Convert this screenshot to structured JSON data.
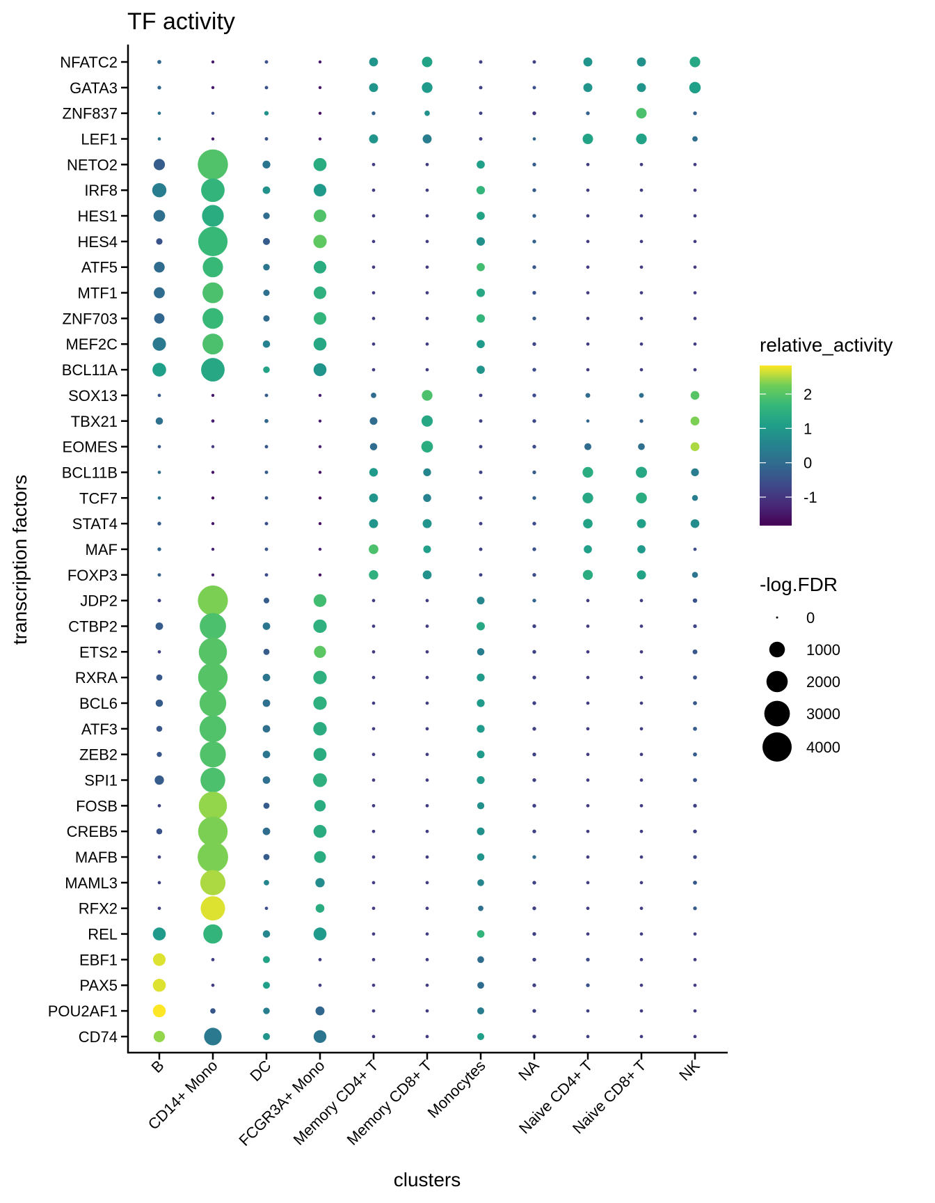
{
  "chart_data": {
    "type": "scatter",
    "subtype": "dot-plot",
    "title": "TF activity",
    "xlabel": "clusters",
    "ylabel": "transcription factors",
    "grid": false,
    "legend_position": "right",
    "x": [
      "B",
      "CD14+ Mono",
      "DC",
      "FCGR3A+ Mono",
      "Memory CD4+ T",
      "Memory CD8+ T",
      "Monocytes",
      "NA",
      "Naive CD4+ T",
      "Naive CD8+ T",
      "NK"
    ],
    "y": [
      "NFATC2",
      "GATA3",
      "ZNF837",
      "LEF1",
      "NETO2",
      "IRF8",
      "HES1",
      "HES4",
      "ATF5",
      "MTF1",
      "ZNF703",
      "MEF2C",
      "BCL11A",
      "SOX13",
      "TBX21",
      "EOMES",
      "BCL11B",
      "TCF7",
      "STAT4",
      "MAF",
      "FOXP3",
      "JDP2",
      "CTBP2",
      "ETS2",
      "RXRA",
      "BCL6",
      "ATF3",
      "ZEB2",
      "SPI1",
      "FOSB",
      "CREB5",
      "MAFB",
      "MAML3",
      "RFX2",
      "REL",
      "EBF1",
      "PAX5",
      "POU2AF1",
      "CD74"
    ],
    "color_legend": {
      "title": "relative_activity",
      "ticks": [
        2,
        1,
        0,
        -1
      ],
      "range": [
        -1.83,
        2.83
      ],
      "palette": "viridis"
    },
    "size_legend": {
      "title": "-log.FDR",
      "breaks": [
        0,
        1000,
        2000,
        3000,
        4000
      ]
    },
    "series": [
      {
        "name": "relative_activity",
        "rows": [
          [
            -0.1,
            -1.5,
            -0.5,
            -1.5,
            0.9,
            1.2,
            -0.8,
            -0.8,
            0.9,
            0.8,
            1.3
          ],
          [
            -0.1,
            -1.5,
            -0.5,
            -1.5,
            0.9,
            1.0,
            -0.8,
            -0.5,
            0.9,
            0.9,
            1.1
          ],
          [
            0.2,
            -0.6,
            0.8,
            -1.6,
            -0.2,
            0.8,
            -0.8,
            -1.0,
            -0.2,
            1.9,
            -0.2
          ],
          [
            0.2,
            -1.5,
            -0.5,
            -1.5,
            0.9,
            0.4,
            -0.8,
            -0.1,
            1.2,
            1.2,
            0.1
          ],
          [
            -0.3,
            1.95,
            0.2,
            1.4,
            -0.9,
            -0.9,
            1.1,
            -0.3,
            -0.9,
            -0.9,
            -0.9
          ],
          [
            0.4,
            1.6,
            0.8,
            1.0,
            -0.9,
            -0.9,
            1.6,
            -0.3,
            -0.9,
            -0.9,
            -0.9
          ],
          [
            0.1,
            1.4,
            0.0,
            1.95,
            -0.9,
            -0.9,
            1.2,
            -0.2,
            -0.9,
            -0.9,
            -0.9
          ],
          [
            -0.5,
            1.7,
            -0.3,
            2.1,
            -0.9,
            -0.9,
            0.8,
            -0.2,
            -0.9,
            -0.9,
            -0.9
          ],
          [
            0.0,
            1.7,
            0.2,
            1.4,
            -0.9,
            -0.9,
            1.8,
            -0.4,
            -0.9,
            -0.9,
            -0.9
          ],
          [
            0.0,
            1.9,
            0.1,
            1.5,
            -0.9,
            -0.9,
            1.3,
            -0.5,
            -0.9,
            -0.9,
            -0.9
          ],
          [
            -0.1,
            1.7,
            0.0,
            1.6,
            -0.9,
            -0.9,
            1.6,
            -0.3,
            -0.9,
            -0.9,
            -0.9
          ],
          [
            0.3,
            1.9,
            0.5,
            1.3,
            -0.9,
            -0.9,
            1.0,
            -0.7,
            -0.9,
            -0.9,
            -0.9
          ],
          [
            1.1,
            1.3,
            1.2,
            0.9,
            -0.9,
            -0.9,
            0.9,
            -0.6,
            -0.9,
            -0.9,
            -0.9
          ],
          [
            -0.4,
            -1.5,
            -0.3,
            -1.4,
            0.0,
            1.9,
            -0.8,
            -0.6,
            0.0,
            0.1,
            2.0
          ],
          [
            0.1,
            -1.4,
            -0.1,
            -1.4,
            0.0,
            1.3,
            -0.8,
            -0.7,
            -0.1,
            -0.2,
            2.3
          ],
          [
            -0.4,
            -1.0,
            -0.4,
            -1.4,
            0.0,
            1.4,
            -0.8,
            -0.6,
            0.0,
            0.1,
            2.5
          ],
          [
            0.1,
            -1.6,
            -0.3,
            -1.6,
            1.0,
            0.6,
            -0.8,
            -0.3,
            1.4,
            1.3,
            0.4
          ],
          [
            0.2,
            -1.7,
            -0.3,
            -1.8,
            0.9,
            0.5,
            -0.8,
            -0.2,
            1.3,
            1.4,
            0.4
          ],
          [
            -0.3,
            -1.5,
            -0.6,
            -1.6,
            0.9,
            0.9,
            -0.8,
            -0.6,
            1.2,
            1.1,
            0.7
          ],
          [
            -0.1,
            -1.3,
            -0.4,
            -1.3,
            1.9,
            1.1,
            -0.8,
            -0.5,
            1.1,
            1.0,
            -0.6
          ],
          [
            -0.2,
            -1.4,
            -0.6,
            -1.6,
            1.5,
            0.8,
            -0.8,
            -0.6,
            1.4,
            1.2,
            0.2
          ],
          [
            -0.8,
            2.3,
            -0.3,
            1.8,
            -0.9,
            -0.9,
            0.6,
            -0.1,
            -0.9,
            -0.9,
            -0.5
          ],
          [
            -0.3,
            1.9,
            0.2,
            1.5,
            -0.9,
            -0.9,
            1.3,
            -0.8,
            -0.9,
            -0.9,
            -0.7
          ],
          [
            -0.8,
            2.0,
            -0.3,
            2.05,
            -0.9,
            -0.9,
            0.4,
            -0.8,
            -0.9,
            -0.9,
            -0.4
          ],
          [
            -0.4,
            2.0,
            0.2,
            1.5,
            -0.9,
            -0.9,
            1.0,
            -0.8,
            -0.9,
            -0.9,
            -0.5
          ],
          [
            -0.3,
            2.0,
            0.1,
            1.5,
            -0.9,
            -0.9,
            1.0,
            -0.8,
            -0.9,
            -0.9,
            -0.4
          ],
          [
            -0.4,
            1.95,
            0.1,
            1.4,
            -0.9,
            -0.9,
            1.0,
            -0.8,
            -0.9,
            -0.9,
            -0.3
          ],
          [
            -0.4,
            1.95,
            0.2,
            1.4,
            -0.9,
            -0.9,
            1.0,
            -0.8,
            -0.9,
            -0.9,
            -0.3
          ],
          [
            -0.3,
            1.9,
            0.1,
            1.5,
            -0.9,
            -0.9,
            1.0,
            -0.8,
            -0.9,
            -0.9,
            -0.5
          ],
          [
            -0.8,
            2.4,
            -0.3,
            1.4,
            -0.9,
            -0.9,
            0.8,
            -0.8,
            -0.9,
            -0.9,
            -0.8
          ],
          [
            -0.5,
            2.3,
            0.0,
            1.4,
            -0.9,
            -0.9,
            0.8,
            -0.8,
            -0.9,
            -0.9,
            -0.8
          ],
          [
            -0.8,
            2.3,
            -0.3,
            1.4,
            -0.9,
            -0.9,
            0.9,
            0.1,
            -0.9,
            -0.9,
            -0.7
          ],
          [
            -0.8,
            2.5,
            0.6,
            0.7,
            -0.9,
            -0.9,
            0.6,
            -0.8,
            -0.9,
            -0.9,
            -0.4
          ],
          [
            -0.8,
            2.7,
            -0.6,
            1.4,
            -0.9,
            -0.9,
            0.1,
            -0.8,
            -0.9,
            -0.9,
            -0.3
          ],
          [
            1.0,
            1.6,
            0.6,
            1.0,
            -0.9,
            -0.9,
            1.6,
            -0.8,
            -0.9,
            -0.9,
            -0.8
          ],
          [
            2.7,
            -0.9,
            1.2,
            -0.9,
            -0.9,
            -0.9,
            0.0,
            -0.8,
            -0.6,
            -0.9,
            -0.9
          ],
          [
            2.7,
            -0.9,
            1.1,
            -0.9,
            -0.9,
            -0.9,
            0.0,
            -0.8,
            -0.5,
            -0.9,
            -0.9
          ],
          [
            2.85,
            -0.4,
            0.4,
            -0.1,
            -0.9,
            -0.9,
            0.4,
            -0.8,
            -0.8,
            -0.9,
            -0.9
          ],
          [
            2.4,
            0.3,
            0.9,
            0.2,
            -0.9,
            -0.9,
            1.1,
            -0.8,
            -0.8,
            -0.9,
            -0.9
          ]
        ]
      },
      {
        "name": "-log.FDR",
        "rows": [
          [
            20,
            5,
            10,
            5,
            250,
            380,
            10,
            10,
            260,
            260,
            390
          ],
          [
            15,
            5,
            10,
            5,
            260,
            400,
            10,
            10,
            260,
            260,
            480
          ],
          [
            8,
            5,
            30,
            5,
            15,
            60,
            10,
            15,
            15,
            380,
            15
          ],
          [
            8,
            5,
            10,
            5,
            260,
            260,
            10,
            8,
            380,
            400,
            60
          ],
          [
            460,
            4300,
            180,
            660,
            8,
            8,
            200,
            15,
            8,
            8,
            8
          ],
          [
            800,
            2500,
            160,
            600,
            8,
            8,
            220,
            15,
            8,
            8,
            8
          ],
          [
            500,
            2100,
            110,
            600,
            8,
            8,
            200,
            15,
            8,
            8,
            8
          ],
          [
            100,
            4050,
            130,
            690,
            8,
            8,
            220,
            15,
            8,
            8,
            8
          ],
          [
            410,
            1800,
            110,
            600,
            8,
            8,
            200,
            15,
            8,
            8,
            8
          ],
          [
            430,
            1900,
            100,
            600,
            8,
            8,
            220,
            15,
            8,
            8,
            8
          ],
          [
            370,
            1900,
            100,
            600,
            8,
            8,
            220,
            15,
            8,
            8,
            8
          ],
          [
            690,
            1900,
            150,
            640,
            8,
            8,
            200,
            15,
            8,
            8,
            8
          ],
          [
            730,
            2500,
            110,
            640,
            8,
            8,
            200,
            15,
            8,
            8,
            8
          ],
          [
            8,
            5,
            10,
            5,
            60,
            400,
            10,
            15,
            40,
            40,
            240
          ],
          [
            150,
            8,
            20,
            5,
            170,
            460,
            10,
            15,
            8,
            15,
            250
          ],
          [
            8,
            5,
            10,
            5,
            150,
            500,
            10,
            15,
            130,
            120,
            250
          ],
          [
            8,
            5,
            10,
            5,
            230,
            180,
            10,
            15,
            400,
            440,
            180
          ],
          [
            8,
            5,
            10,
            5,
            250,
            190,
            10,
            15,
            400,
            420,
            80
          ],
          [
            15,
            5,
            10,
            5,
            260,
            260,
            10,
            15,
            300,
            260,
            240
          ],
          [
            15,
            5,
            10,
            5,
            310,
            170,
            10,
            15,
            200,
            200,
            8
          ],
          [
            10,
            5,
            10,
            5,
            290,
            250,
            10,
            15,
            340,
            270,
            80
          ],
          [
            10,
            4250,
            70,
            620,
            8,
            8,
            170,
            15,
            8,
            8,
            30
          ],
          [
            160,
            3200,
            160,
            700,
            8,
            8,
            210,
            15,
            8,
            8,
            15
          ],
          [
            8,
            3700,
            90,
            540,
            8,
            8,
            150,
            15,
            8,
            8,
            40
          ],
          [
            90,
            4100,
            160,
            700,
            8,
            8,
            180,
            15,
            8,
            8,
            20
          ],
          [
            150,
            3300,
            160,
            700,
            8,
            8,
            180,
            15,
            8,
            8,
            20
          ],
          [
            80,
            3300,
            160,
            700,
            8,
            8,
            180,
            15,
            8,
            8,
            20
          ],
          [
            50,
            3100,
            160,
            650,
            8,
            8,
            170,
            15,
            8,
            8,
            20
          ],
          [
            280,
            2800,
            160,
            750,
            8,
            8,
            180,
            15,
            8,
            8,
            20
          ],
          [
            8,
            3700,
            90,
            480,
            8,
            8,
            140,
            15,
            8,
            8,
            15
          ],
          [
            80,
            4100,
            160,
            640,
            8,
            8,
            170,
            15,
            8,
            8,
            15
          ],
          [
            8,
            4400,
            90,
            520,
            8,
            8,
            150,
            15,
            8,
            8,
            15
          ],
          [
            8,
            2900,
            60,
            280,
            8,
            8,
            120,
            15,
            8,
            8,
            20
          ],
          [
            8,
            2700,
            8,
            240,
            8,
            8,
            60,
            15,
            8,
            8,
            15
          ],
          [
            640,
            1600,
            150,
            640,
            8,
            8,
            160,
            15,
            8,
            8,
            8
          ],
          [
            600,
            8,
            130,
            8,
            8,
            8,
            120,
            15,
            15,
            8,
            8
          ],
          [
            640,
            8,
            130,
            8,
            8,
            8,
            120,
            15,
            15,
            8,
            8
          ],
          [
            620,
            60,
            110,
            260,
            8,
            8,
            130,
            15,
            8,
            8,
            8
          ],
          [
            460,
            1300,
            130,
            620,
            8,
            8,
            130,
            15,
            8,
            8,
            8
          ]
        ]
      }
    ]
  }
}
